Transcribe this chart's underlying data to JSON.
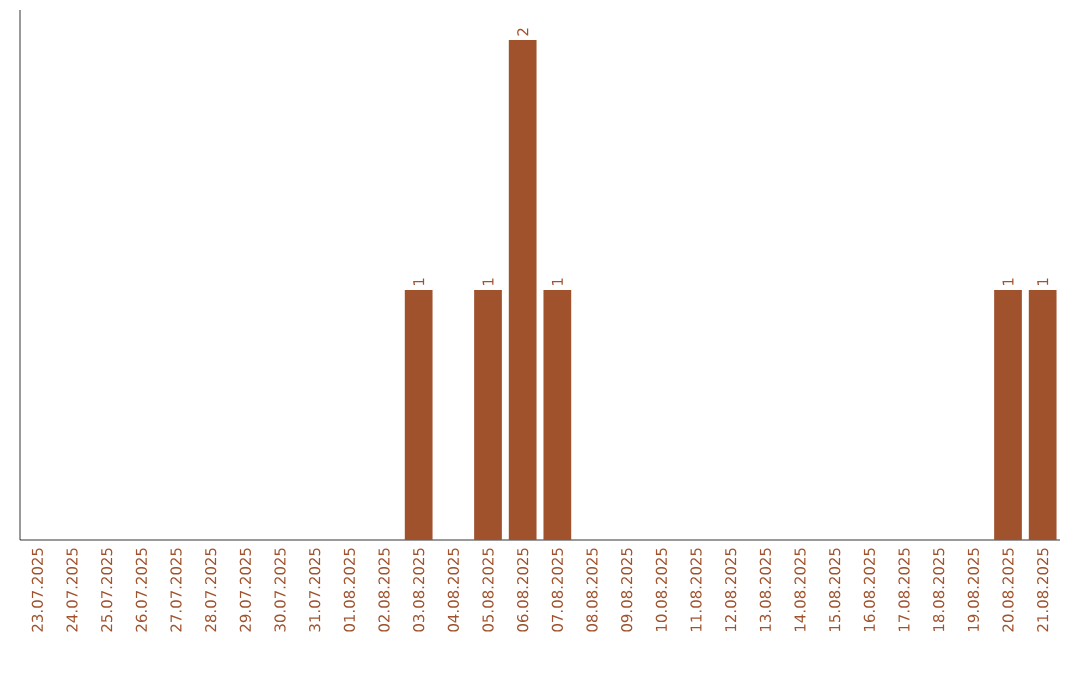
{
  "chart_data": {
    "type": "bar",
    "categories": [
      "23.07.2025",
      "24.07.2025",
      "25.07.2025",
      "26.07.2025",
      "27.07.2025",
      "28.07.2025",
      "29.07.2025",
      "30.07.2025",
      "31.07.2025",
      "01.08.2025",
      "02.08.2025",
      "03.08.2025",
      "04.08.2025",
      "05.08.2025",
      "06.08.2025",
      "07.08.2025",
      "08.08.2025",
      "09.08.2025",
      "10.08.2025",
      "11.08.2025",
      "12.08.2025",
      "13.08.2025",
      "14.08.2025",
      "15.08.2025",
      "16.08.2025",
      "17.08.2025",
      "18.08.2025",
      "19.08.2025",
      "20.08.2025",
      "21.08.2025"
    ],
    "values": [
      0,
      0,
      0,
      0,
      0,
      0,
      0,
      0,
      0,
      0,
      0,
      1,
      0,
      1,
      2,
      1,
      0,
      0,
      0,
      0,
      0,
      0,
      0,
      0,
      0,
      0,
      0,
      0,
      1,
      1
    ],
    "value_labels": [
      null,
      null,
      null,
      null,
      null,
      null,
      null,
      null,
      null,
      null,
      null,
      "1",
      null,
      "1",
      "2",
      "1",
      null,
      null,
      null,
      null,
      null,
      null,
      null,
      null,
      null,
      null,
      null,
      null,
      "1",
      "1"
    ],
    "color": "#a0522d",
    "tick_labels": "x",
    "grid": false
  }
}
